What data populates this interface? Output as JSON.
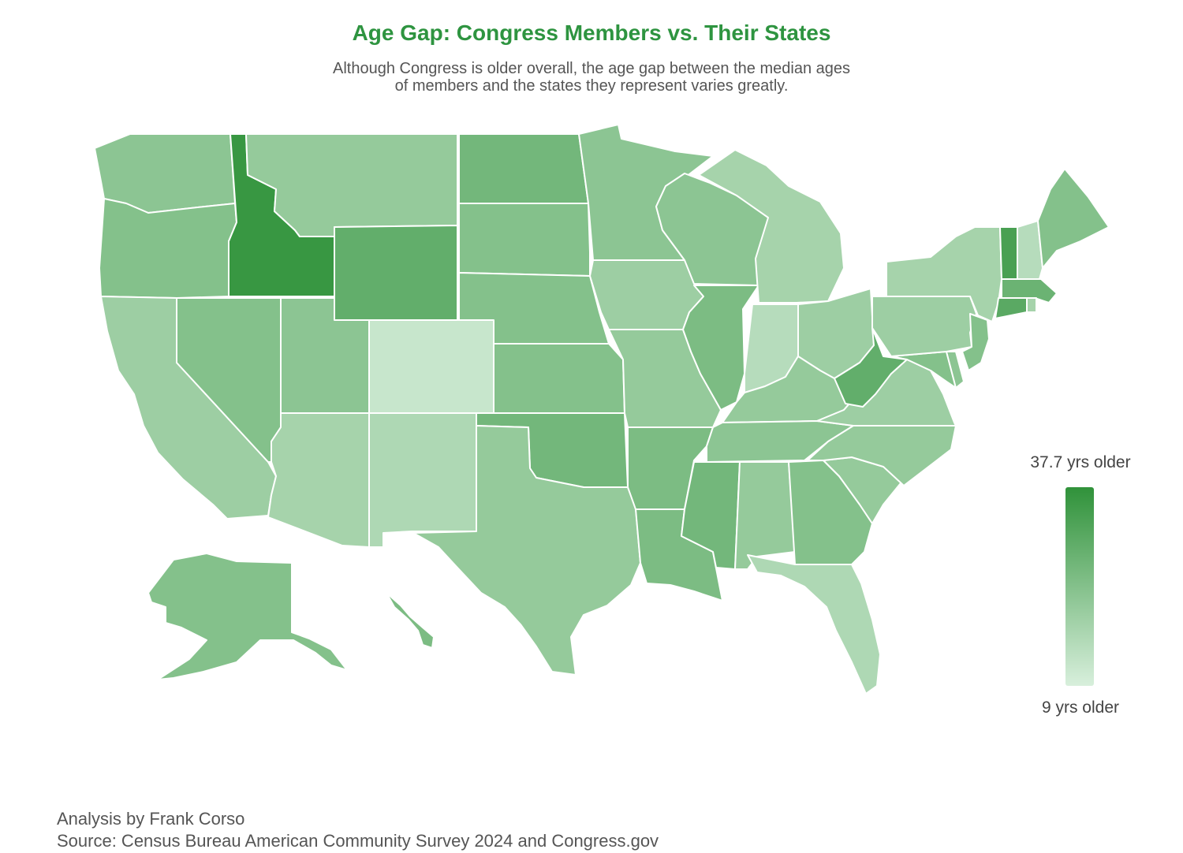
{
  "header": {
    "title": "Age Gap: Congress Members vs. Their States",
    "subtitle_line1": "Although Congress is older overall, the age gap between the median ages",
    "subtitle_line2": "of members and the states they represent varies greatly."
  },
  "colors": {
    "title": "#2e9440",
    "scale_low": "#d8efdc",
    "scale_high": "#30923a"
  },
  "legend": {
    "max_label": "37.7 yrs older",
    "min_label": "9 yrs older",
    "max_value": 37.7,
    "min_value": 9
  },
  "footer": {
    "credit": "Analysis by Frank Corso",
    "source": "Source: Census Bureau American Community Survey 2024 and Congress.gov"
  },
  "map_data": {
    "type": "choropleth",
    "measure": "age gap (years older)",
    "shading_level": {
      "WA": 0.45,
      "OR": 0.5,
      "CA": 0.35,
      "ID": 0.95,
      "NV": 0.5,
      "MT": 0.4,
      "WY": 0.7,
      "UT": 0.45,
      "CO": 0.1,
      "AZ": 0.3,
      "NM": 0.25,
      "ND": 0.6,
      "SD": 0.5,
      "NE": 0.5,
      "KS": 0.5,
      "OK": 0.6,
      "TX": 0.4,
      "MN": 0.45,
      "IA": 0.35,
      "MO": 0.4,
      "AR": 0.55,
      "LA": 0.55,
      "WI": 0.45,
      "IL": 0.55,
      "MI": 0.3,
      "IN": 0.2,
      "OH": 0.35,
      "KY": 0.4,
      "TN": 0.45,
      "MS": 0.6,
      "AL": 0.4,
      "GA": 0.5,
      "FL": 0.25,
      "SC": 0.4,
      "NC": 0.4,
      "VA": 0.35,
      "WV": 0.7,
      "MD": 0.5,
      "DE": 0.45,
      "PA": 0.35,
      "NJ": 0.5,
      "NY": 0.3,
      "VT": 0.85,
      "NH": 0.2,
      "ME": 0.5,
      "MA": 0.65,
      "CT": 0.75,
      "RI": 0.3,
      "AK": 0.5,
      "HI": 0.55
    }
  }
}
